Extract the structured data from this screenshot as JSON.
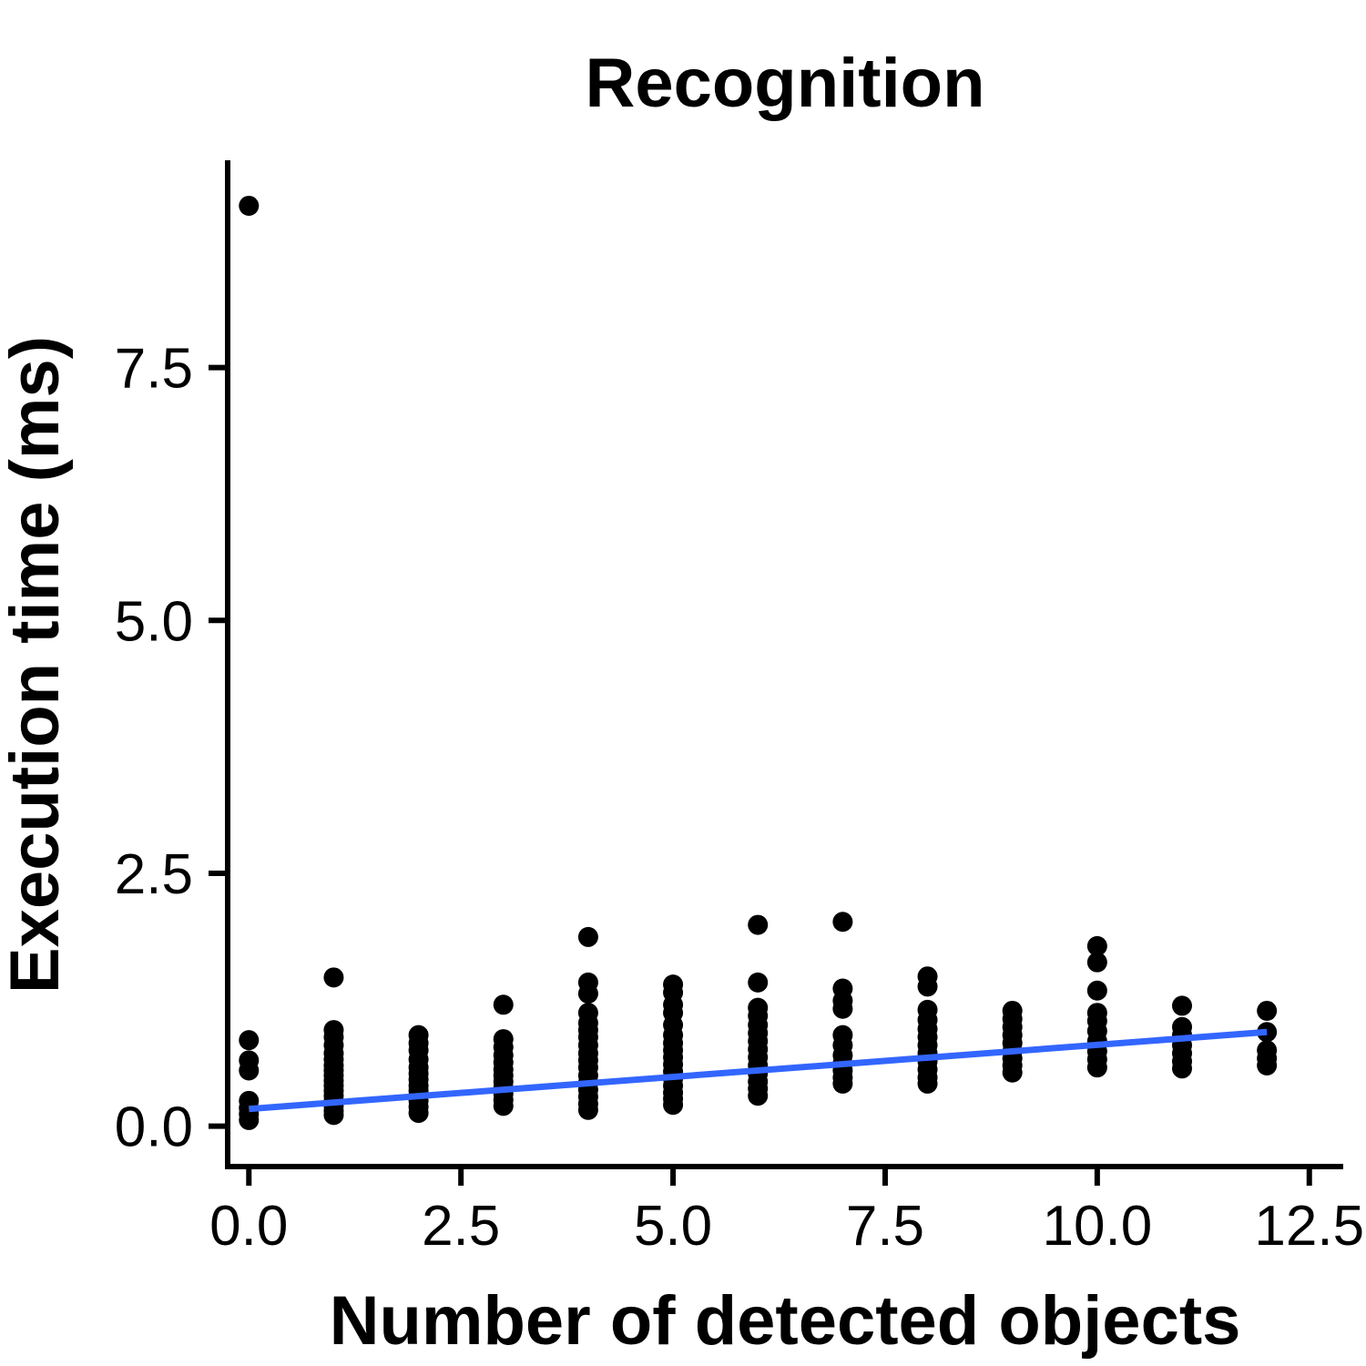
{
  "chart_data": {
    "type": "scatter",
    "title": "Recognition",
    "xlabel": "Number of detected objects",
    "ylabel": "Execution time (ms)",
    "xlim": [
      -0.25,
      12.9
    ],
    "ylim": [
      -0.4,
      9.55
    ],
    "xticks": [
      0.0,
      2.5,
      5.0,
      7.5,
      10.0,
      12.5
    ],
    "xtick_labels": [
      "0.0",
      "2.5",
      "5.0",
      "7.5",
      "10.0",
      "12.5"
    ],
    "yticks": [
      0.0,
      2.5,
      5.0,
      7.5
    ],
    "ytick_labels": [
      "0.0",
      "2.5",
      "5.0",
      "7.5"
    ],
    "grid": false,
    "point_color": "#000000",
    "trend_color": "#3366FF",
    "points": [
      {
        "x": 0,
        "y": 9.1
      },
      {
        "x": 0,
        "y": 0.85
      },
      {
        "x": 0,
        "y": 0.65
      },
      {
        "x": 0,
        "y": 0.55
      },
      {
        "x": 0,
        "y": 0.25
      },
      {
        "x": 0,
        "y": 0.18
      },
      {
        "x": 0,
        "y": 0.12
      },
      {
        "x": 0,
        "y": 0.06
      },
      {
        "x": 1,
        "y": 1.47
      },
      {
        "x": 1,
        "y": 0.95
      },
      {
        "x": 1,
        "y": 0.88
      },
      {
        "x": 1,
        "y": 0.8
      },
      {
        "x": 1,
        "y": 0.72
      },
      {
        "x": 1,
        "y": 0.66
      },
      {
        "x": 1,
        "y": 0.6
      },
      {
        "x": 1,
        "y": 0.55
      },
      {
        "x": 1,
        "y": 0.5
      },
      {
        "x": 1,
        "y": 0.45
      },
      {
        "x": 1,
        "y": 0.4
      },
      {
        "x": 1,
        "y": 0.35
      },
      {
        "x": 1,
        "y": 0.3
      },
      {
        "x": 1,
        "y": 0.25
      },
      {
        "x": 1,
        "y": 0.2
      },
      {
        "x": 1,
        "y": 0.15
      },
      {
        "x": 1,
        "y": 0.11
      },
      {
        "x": 2,
        "y": 0.9
      },
      {
        "x": 2,
        "y": 0.82
      },
      {
        "x": 2,
        "y": 0.75
      },
      {
        "x": 2,
        "y": 0.66
      },
      {
        "x": 2,
        "y": 0.58
      },
      {
        "x": 2,
        "y": 0.52
      },
      {
        "x": 2,
        "y": 0.46
      },
      {
        "x": 2,
        "y": 0.4
      },
      {
        "x": 2,
        "y": 0.35
      },
      {
        "x": 2,
        "y": 0.3
      },
      {
        "x": 2,
        "y": 0.25
      },
      {
        "x": 2,
        "y": 0.19
      },
      {
        "x": 2,
        "y": 0.13
      },
      {
        "x": 3,
        "y": 1.2
      },
      {
        "x": 3,
        "y": 0.86
      },
      {
        "x": 3,
        "y": 0.78
      },
      {
        "x": 3,
        "y": 0.7
      },
      {
        "x": 3,
        "y": 0.63
      },
      {
        "x": 3,
        "y": 0.56
      },
      {
        "x": 3,
        "y": 0.5
      },
      {
        "x": 3,
        "y": 0.44
      },
      {
        "x": 3,
        "y": 0.38
      },
      {
        "x": 3,
        "y": 0.32
      },
      {
        "x": 3,
        "y": 0.26
      },
      {
        "x": 3,
        "y": 0.2
      },
      {
        "x": 4,
        "y": 1.87
      },
      {
        "x": 4,
        "y": 1.42
      },
      {
        "x": 4,
        "y": 1.31
      },
      {
        "x": 4,
        "y": 1.12
      },
      {
        "x": 4,
        "y": 1.02
      },
      {
        "x": 4,
        "y": 0.95
      },
      {
        "x": 4,
        "y": 0.88
      },
      {
        "x": 4,
        "y": 0.8
      },
      {
        "x": 4,
        "y": 0.72
      },
      {
        "x": 4,
        "y": 0.65
      },
      {
        "x": 4,
        "y": 0.58
      },
      {
        "x": 4,
        "y": 0.5
      },
      {
        "x": 4,
        "y": 0.43
      },
      {
        "x": 4,
        "y": 0.36
      },
      {
        "x": 4,
        "y": 0.29
      },
      {
        "x": 4,
        "y": 0.22
      },
      {
        "x": 4,
        "y": 0.16
      },
      {
        "x": 5,
        "y": 1.4
      },
      {
        "x": 5,
        "y": 1.32
      },
      {
        "x": 5,
        "y": 1.2
      },
      {
        "x": 5,
        "y": 1.12
      },
      {
        "x": 5,
        "y": 1.0
      },
      {
        "x": 5,
        "y": 0.9
      },
      {
        "x": 5,
        "y": 0.82
      },
      {
        "x": 5,
        "y": 0.75
      },
      {
        "x": 5,
        "y": 0.68
      },
      {
        "x": 5,
        "y": 0.61
      },
      {
        "x": 5,
        "y": 0.54
      },
      {
        "x": 5,
        "y": 0.47
      },
      {
        "x": 5,
        "y": 0.4
      },
      {
        "x": 5,
        "y": 0.33
      },
      {
        "x": 5,
        "y": 0.27
      },
      {
        "x": 5,
        "y": 0.21
      },
      {
        "x": 6,
        "y": 1.99
      },
      {
        "x": 6,
        "y": 1.42
      },
      {
        "x": 6,
        "y": 1.17
      },
      {
        "x": 6,
        "y": 1.09
      },
      {
        "x": 6,
        "y": 1.0
      },
      {
        "x": 6,
        "y": 0.92
      },
      {
        "x": 6,
        "y": 0.84
      },
      {
        "x": 6,
        "y": 0.76
      },
      {
        "x": 6,
        "y": 0.68
      },
      {
        "x": 6,
        "y": 0.6
      },
      {
        "x": 6,
        "y": 0.52
      },
      {
        "x": 6,
        "y": 0.44
      },
      {
        "x": 6,
        "y": 0.37
      },
      {
        "x": 6,
        "y": 0.3
      },
      {
        "x": 7,
        "y": 2.02
      },
      {
        "x": 7,
        "y": 1.36
      },
      {
        "x": 7,
        "y": 1.24
      },
      {
        "x": 7,
        "y": 1.16
      },
      {
        "x": 7,
        "y": 0.9
      },
      {
        "x": 7,
        "y": 0.8
      },
      {
        "x": 7,
        "y": 0.7
      },
      {
        "x": 7,
        "y": 0.62
      },
      {
        "x": 7,
        "y": 0.55
      },
      {
        "x": 7,
        "y": 0.48
      },
      {
        "x": 7,
        "y": 0.42
      },
      {
        "x": 8,
        "y": 1.48
      },
      {
        "x": 8,
        "y": 1.38
      },
      {
        "x": 8,
        "y": 1.15
      },
      {
        "x": 8,
        "y": 1.05
      },
      {
        "x": 8,
        "y": 0.96
      },
      {
        "x": 8,
        "y": 0.88
      },
      {
        "x": 8,
        "y": 0.8
      },
      {
        "x": 8,
        "y": 0.72
      },
      {
        "x": 8,
        "y": 0.64
      },
      {
        "x": 8,
        "y": 0.56
      },
      {
        "x": 8,
        "y": 0.48
      },
      {
        "x": 8,
        "y": 0.42
      },
      {
        "x": 9,
        "y": 1.14
      },
      {
        "x": 9,
        "y": 1.06
      },
      {
        "x": 9,
        "y": 0.98
      },
      {
        "x": 9,
        "y": 0.9
      },
      {
        "x": 9,
        "y": 0.82
      },
      {
        "x": 9,
        "y": 0.74
      },
      {
        "x": 9,
        "y": 0.67
      },
      {
        "x": 9,
        "y": 0.6
      },
      {
        "x": 9,
        "y": 0.53
      },
      {
        "x": 10,
        "y": 1.78
      },
      {
        "x": 10,
        "y": 1.62
      },
      {
        "x": 10,
        "y": 1.34
      },
      {
        "x": 10,
        "y": 1.12
      },
      {
        "x": 10,
        "y": 1.04
      },
      {
        "x": 10,
        "y": 0.94
      },
      {
        "x": 10,
        "y": 0.84
      },
      {
        "x": 10,
        "y": 0.74
      },
      {
        "x": 10,
        "y": 0.66
      },
      {
        "x": 10,
        "y": 0.58
      },
      {
        "x": 11,
        "y": 1.19
      },
      {
        "x": 11,
        "y": 0.98
      },
      {
        "x": 11,
        "y": 0.9
      },
      {
        "x": 11,
        "y": 0.8
      },
      {
        "x": 11,
        "y": 0.72
      },
      {
        "x": 11,
        "y": 0.64
      },
      {
        "x": 11,
        "y": 0.57
      },
      {
        "x": 12,
        "y": 1.14
      },
      {
        "x": 12,
        "y": 0.93
      },
      {
        "x": 12,
        "y": 0.75
      },
      {
        "x": 12,
        "y": 0.67
      },
      {
        "x": 12,
        "y": 0.6
      }
    ],
    "trend_line": {
      "x": [
        0,
        12
      ],
      "y": [
        0.17,
        0.93
      ]
    }
  }
}
